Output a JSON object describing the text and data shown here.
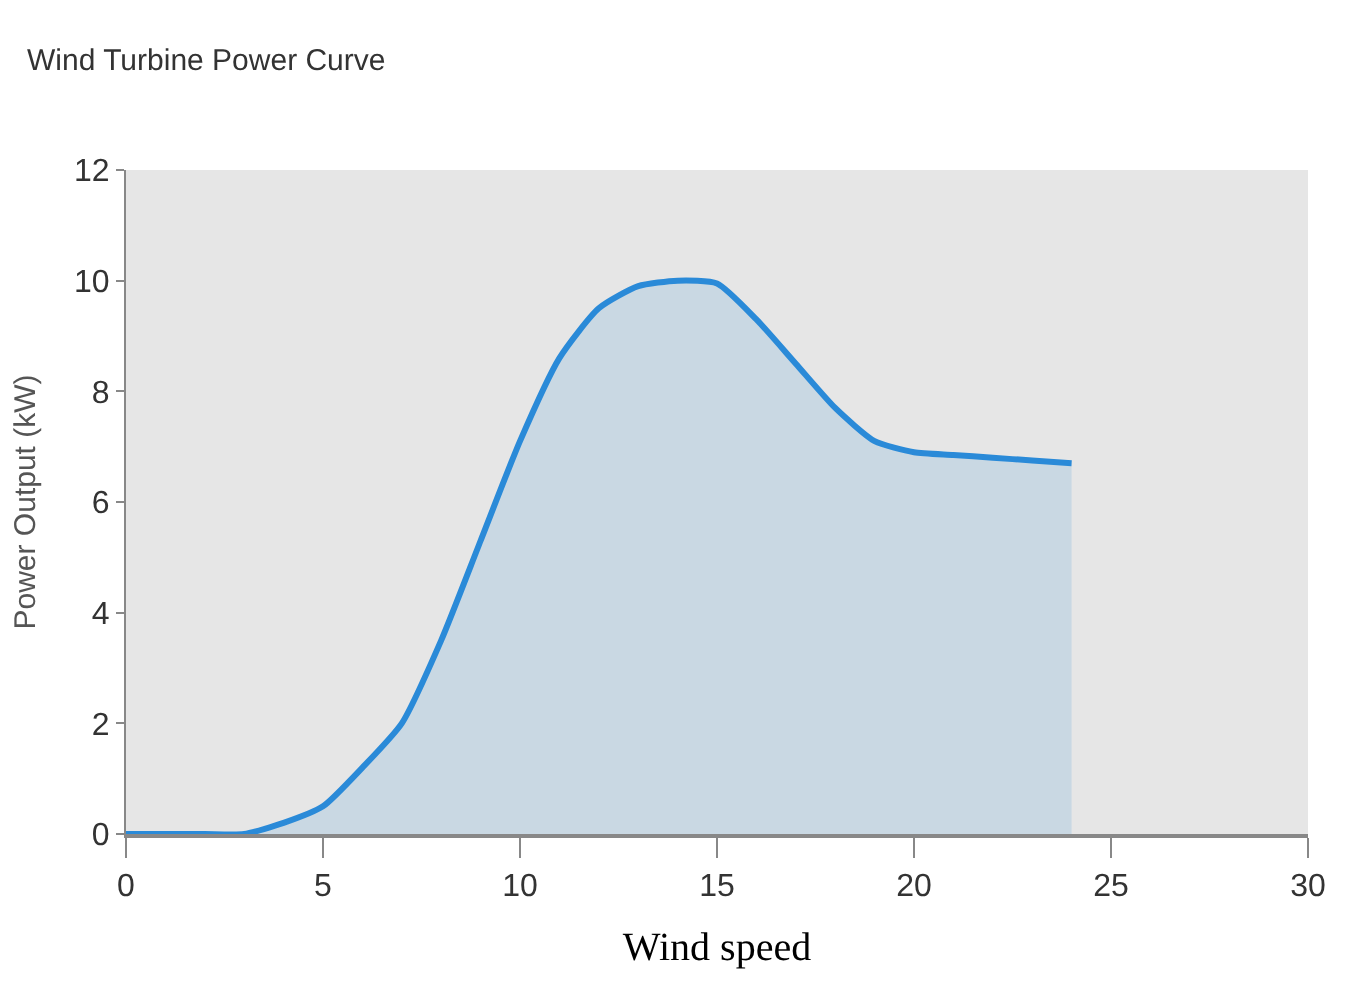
{
  "chart_data": {
    "type": "area",
    "title": "Wind Turbine Power Curve",
    "xlabel": "Wind speed",
    "ylabel": "Power Output (kW)",
    "series": [
      {
        "color": "#2a8ad8",
        "x": [
          0,
          1,
          2,
          3,
          4,
          5,
          6,
          7,
          8,
          9,
          10,
          11,
          12,
          13,
          14,
          15,
          16,
          17,
          18,
          19,
          20,
          21,
          22,
          23,
          24
        ],
        "values": [
          0,
          0,
          0,
          0,
          0.2,
          0.5,
          1.2,
          2.0,
          3.5,
          5.3,
          7.1,
          8.6,
          9.5,
          9.9,
          10.0,
          9.95,
          9.3,
          8.5,
          7.7,
          7.1,
          6.9,
          6.85,
          6.8,
          6.75,
          6.7
        ]
      }
    ],
    "xlim": [
      0,
      30
    ],
    "xticks": [
      0,
      5,
      10,
      15,
      20,
      25,
      30
    ],
    "ylim": [
      0,
      12
    ],
    "yticks": [
      0,
      2,
      4,
      6,
      8,
      10,
      12
    ],
    "grid": false
  }
}
